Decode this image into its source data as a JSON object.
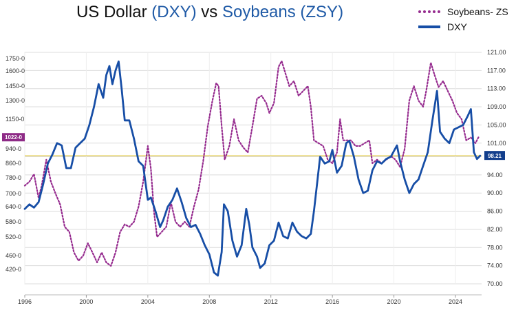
{
  "chart_data": {
    "type": "line",
    "title_parts": [
      "US Dollar ",
      "(DXY)",
      " vs ",
      "Soybeans (ZSY)"
    ],
    "left_axis": {
      "ticks": [
        "420-0",
        "460-0",
        "520-0",
        "580-0",
        "640-0",
        "700-0",
        "780-0",
        "860-0",
        "940-0",
        "1150-0",
        "1300-0",
        "1450-0",
        "1600-0",
        "1750-0"
      ]
    },
    "right_axis": {
      "ticks": [
        "70.00",
        "74.00",
        "78.00",
        "82.00",
        "86.00",
        "90.00",
        "94.00",
        "98.00",
        "101.00",
        "105.00",
        "109.00",
        "113.00",
        "117.00",
        "121.00"
      ]
    },
    "x_ticks": [
      "1996",
      "2000",
      "2004",
      "2008",
      "2012",
      "2016",
      "2020",
      "2024"
    ],
    "x_range": [
      1996,
      2025.7
    ],
    "grid": true,
    "legend": "top-right",
    "series": [
      {
        "name": "Soybeans- ZS",
        "axis": "left",
        "color": "#962c8f",
        "style": "dotted",
        "points": [
          [
            1996.0,
            740
          ],
          [
            1996.3,
            760
          ],
          [
            1996.6,
            800
          ],
          [
            1996.9,
            680
          ],
          [
            1997.1,
            740
          ],
          [
            1997.4,
            880
          ],
          [
            1997.7,
            760
          ],
          [
            1998.0,
            700
          ],
          [
            1998.3,
            650
          ],
          [
            1998.6,
            560
          ],
          [
            1998.9,
            540
          ],
          [
            1999.2,
            470
          ],
          [
            1999.5,
            445
          ],
          [
            1999.8,
            460
          ],
          [
            2000.1,
            500
          ],
          [
            2000.4,
            470
          ],
          [
            2000.7,
            440
          ],
          [
            2001.0,
            470
          ],
          [
            2001.3,
            440
          ],
          [
            2001.6,
            430
          ],
          [
            2001.9,
            470
          ],
          [
            2002.2,
            540
          ],
          [
            2002.5,
            570
          ],
          [
            2002.8,
            560
          ],
          [
            2003.1,
            580
          ],
          [
            2003.4,
            640
          ],
          [
            2003.7,
            760
          ],
          [
            2004.0,
            960
          ],
          [
            2004.2,
            830
          ],
          [
            2004.4,
            620
          ],
          [
            2004.6,
            520
          ],
          [
            2004.9,
            540
          ],
          [
            2005.2,
            560
          ],
          [
            2005.5,
            660
          ],
          [
            2005.8,
            580
          ],
          [
            2006.1,
            560
          ],
          [
            2006.4,
            580
          ],
          [
            2006.7,
            560
          ],
          [
            2007.0,
            640
          ],
          [
            2007.3,
            720
          ],
          [
            2007.6,
            870
          ],
          [
            2007.9,
            1100
          ],
          [
            2008.2,
            1300
          ],
          [
            2008.45,
            1480
          ],
          [
            2008.6,
            1450
          ],
          [
            2008.8,
            1100
          ],
          [
            2009.0,
            880
          ],
          [
            2009.3,
            960
          ],
          [
            2009.6,
            1150
          ],
          [
            2009.9,
            1000
          ],
          [
            2010.2,
            950
          ],
          [
            2010.5,
            920
          ],
          [
            2010.8,
            1100
          ],
          [
            2011.1,
            1320
          ],
          [
            2011.4,
            1350
          ],
          [
            2011.7,
            1280
          ],
          [
            2011.9,
            1200
          ],
          [
            2012.2,
            1280
          ],
          [
            2012.5,
            1650
          ],
          [
            2012.7,
            1720
          ],
          [
            2012.9,
            1600
          ],
          [
            2013.2,
            1450
          ],
          [
            2013.5,
            1500
          ],
          [
            2013.8,
            1350
          ],
          [
            2014.1,
            1400
          ],
          [
            2014.4,
            1450
          ],
          [
            2014.6,
            1250
          ],
          [
            2014.8,
            1000
          ],
          [
            2015.1,
            980
          ],
          [
            2015.4,
            960
          ],
          [
            2015.7,
            880
          ],
          [
            2016.0,
            860
          ],
          [
            2016.3,
            920
          ],
          [
            2016.5,
            1150
          ],
          [
            2016.7,
            1000
          ],
          [
            2016.9,
            1000
          ],
          [
            2017.2,
            1000
          ],
          [
            2017.5,
            960
          ],
          [
            2017.8,
            960
          ],
          [
            2018.1,
            980
          ],
          [
            2018.4,
            1000
          ],
          [
            2018.6,
            860
          ],
          [
            2018.9,
            880
          ],
          [
            2019.2,
            860
          ],
          [
            2019.5,
            880
          ],
          [
            2019.8,
            900
          ],
          [
            2020.1,
            880
          ],
          [
            2020.4,
            840
          ],
          [
            2020.7,
            940
          ],
          [
            2021.0,
            1300
          ],
          [
            2021.3,
            1450
          ],
          [
            2021.6,
            1300
          ],
          [
            2021.9,
            1250
          ],
          [
            2022.1,
            1400
          ],
          [
            2022.4,
            1700
          ],
          [
            2022.6,
            1580
          ],
          [
            2022.9,
            1440
          ],
          [
            2023.2,
            1500
          ],
          [
            2023.5,
            1400
          ],
          [
            2023.8,
            1300
          ],
          [
            2024.1,
            1200
          ],
          [
            2024.4,
            1150
          ],
          [
            2024.7,
            1000
          ],
          [
            2025.0,
            1020
          ],
          [
            2025.3,
            980
          ],
          [
            2025.5,
            1022
          ]
        ]
      },
      {
        "name": "DXY",
        "axis": "right",
        "color": "#174ea6",
        "style": "solid",
        "points": [
          [
            1996.0,
            86.5
          ],
          [
            1996.3,
            87.5
          ],
          [
            1996.6,
            86.8
          ],
          [
            1996.9,
            88.0
          ],
          [
            1997.2,
            92.0
          ],
          [
            1997.5,
            96.5
          ],
          [
            1997.8,
            98.5
          ],
          [
            1998.1,
            101.0
          ],
          [
            1998.4,
            100.5
          ],
          [
            1998.7,
            95.5
          ],
          [
            1999.0,
            95.5
          ],
          [
            1999.3,
            100.0
          ],
          [
            1999.6,
            101.0
          ],
          [
            1999.9,
            102.0
          ],
          [
            2000.2,
            105.0
          ],
          [
            2000.5,
            109.0
          ],
          [
            2000.8,
            114.0
          ],
          [
            2001.1,
            111.0
          ],
          [
            2001.3,
            116.0
          ],
          [
            2001.5,
            118.0
          ],
          [
            2001.7,
            114.0
          ],
          [
            2001.9,
            117.0
          ],
          [
            2002.1,
            119.0
          ],
          [
            2002.3,
            113.0
          ],
          [
            2002.5,
            106.0
          ],
          [
            2002.8,
            106.0
          ],
          [
            2003.1,
            102.0
          ],
          [
            2003.4,
            97.0
          ],
          [
            2003.7,
            96.0
          ],
          [
            2004.0,
            88.5
          ],
          [
            2004.2,
            89.0
          ],
          [
            2004.5,
            86.0
          ],
          [
            2004.8,
            82.5
          ],
          [
            2005.0,
            84.0
          ],
          [
            2005.3,
            87.0
          ],
          [
            2005.6,
            88.5
          ],
          [
            2005.9,
            91.0
          ],
          [
            2006.2,
            88.0
          ],
          [
            2006.5,
            84.5
          ],
          [
            2006.8,
            82.5
          ],
          [
            2007.1,
            83.0
          ],
          [
            2007.4,
            81.0
          ],
          [
            2007.7,
            78.5
          ],
          [
            2008.0,
            76.5
          ],
          [
            2008.3,
            72.5
          ],
          [
            2008.55,
            71.8
          ],
          [
            2008.8,
            77.0
          ],
          [
            2008.95,
            87.5
          ],
          [
            2009.2,
            86.0
          ],
          [
            2009.5,
            79.5
          ],
          [
            2009.8,
            76.0
          ],
          [
            2010.1,
            78.5
          ],
          [
            2010.4,
            86.5
          ],
          [
            2010.6,
            83.0
          ],
          [
            2010.8,
            78.0
          ],
          [
            2011.1,
            76.0
          ],
          [
            2011.3,
            73.5
          ],
          [
            2011.6,
            74.5
          ],
          [
            2011.9,
            78.5
          ],
          [
            2012.2,
            79.5
          ],
          [
            2012.5,
            83.5
          ],
          [
            2012.8,
            80.5
          ],
          [
            2013.1,
            80.0
          ],
          [
            2013.4,
            83.5
          ],
          [
            2013.7,
            81.5
          ],
          [
            2014.0,
            80.5
          ],
          [
            2014.3,
            80.0
          ],
          [
            2014.6,
            81.0
          ],
          [
            2014.8,
            86.0
          ],
          [
            2015.0,
            92.0
          ],
          [
            2015.2,
            98.0
          ],
          [
            2015.5,
            96.5
          ],
          [
            2015.8,
            97.0
          ],
          [
            2016.0,
            99.5
          ],
          [
            2016.3,
            94.5
          ],
          [
            2016.6,
            96.0
          ],
          [
            2016.9,
            101.0
          ],
          [
            2017.1,
            101.5
          ],
          [
            2017.4,
            98.0
          ],
          [
            2017.7,
            93.0
          ],
          [
            2018.0,
            90.0
          ],
          [
            2018.3,
            90.5
          ],
          [
            2018.6,
            95.0
          ],
          [
            2018.9,
            97.0
          ],
          [
            2019.2,
            96.5
          ],
          [
            2019.5,
            97.5
          ],
          [
            2019.8,
            98.0
          ],
          [
            2020.2,
            100.5
          ],
          [
            2020.4,
            97.0
          ],
          [
            2020.7,
            93.0
          ],
          [
            2021.0,
            90.0
          ],
          [
            2021.3,
            92.0
          ],
          [
            2021.6,
            93.0
          ],
          [
            2021.9,
            96.0
          ],
          [
            2022.2,
            99.0
          ],
          [
            2022.5,
            106.0
          ],
          [
            2022.8,
            112.5
          ],
          [
            2023.0,
            103.5
          ],
          [
            2023.3,
            102.0
          ],
          [
            2023.6,
            101.0
          ],
          [
            2023.9,
            104.0
          ],
          [
            2024.2,
            104.5
          ],
          [
            2024.5,
            105.0
          ],
          [
            2024.8,
            107.0
          ],
          [
            2025.0,
            108.5
          ],
          [
            2025.2,
            99.0
          ],
          [
            2025.4,
            97.5
          ],
          [
            2025.6,
            98.21
          ]
        ]
      }
    ],
    "badges": {
      "left": {
        "text": "1022-0",
        "value": 1022
      },
      "right": {
        "text": "98.21",
        "value": 98.21
      }
    },
    "reference_line_color": "#e8d46a"
  }
}
